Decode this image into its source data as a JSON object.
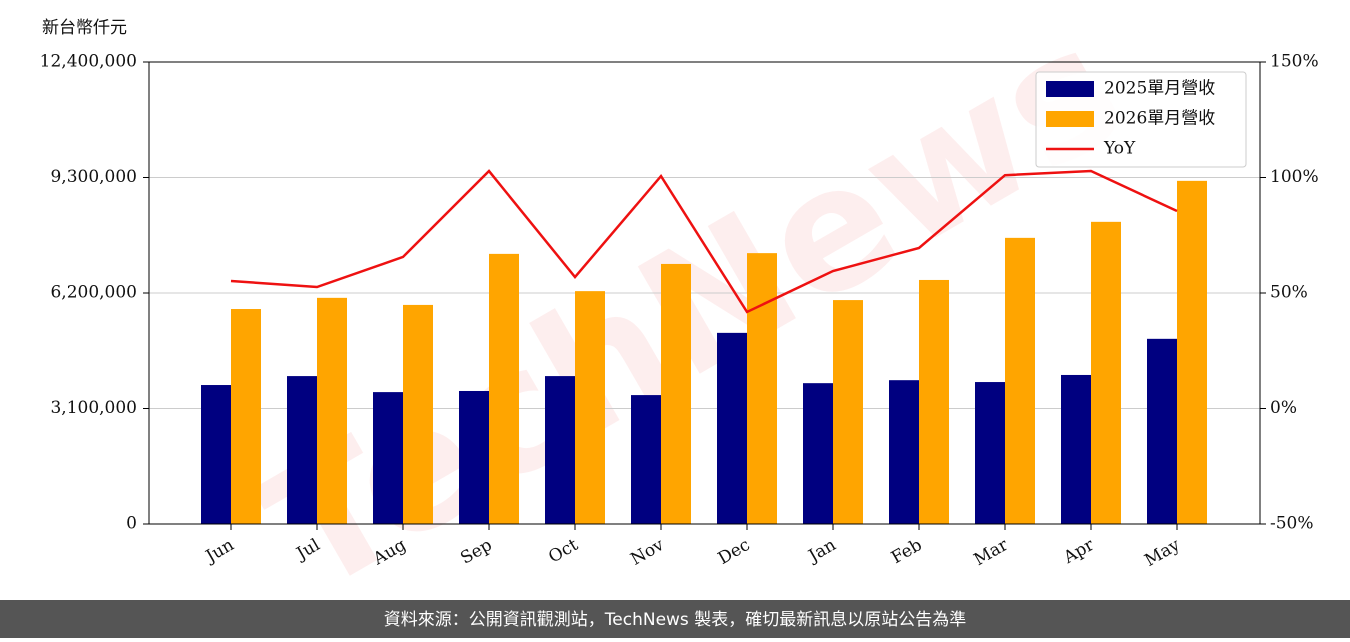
{
  "chart_data": {
    "type": "bar",
    "y_label": "新台幣仟元",
    "watermark": "TechNews",
    "footer": "資料來源：公開資訊觀測站，TechNews 製表，確切最新訊息以原站公告為準",
    "categories": [
      "Jun",
      "Jul",
      "Aug",
      "Sep",
      "Oct",
      "Nov",
      "Dec",
      "Jan",
      "Feb",
      "Mar",
      "Apr",
      "May"
    ],
    "series": [
      {
        "name": "2025單月營收",
        "color": "#000080",
        "type": "bar",
        "values": [
          3730000,
          3970000,
          3540000,
          3570000,
          3970000,
          3460000,
          5130000,
          3780000,
          3860000,
          3810000,
          4000000,
          4970000
        ]
      },
      {
        "name": "2026單月營收",
        "color": "#ffa500",
        "type": "bar",
        "values": [
          5770000,
          6070000,
          5880000,
          7250000,
          6250000,
          6980000,
          7270000,
          6010000,
          6550000,
          7680000,
          8110000,
          9210000
        ]
      },
      {
        "name": "YoY",
        "color": "#ee1111",
        "type": "line",
        "axis": "y2",
        "values": [
          55.2,
          52.6,
          65.6,
          102.8,
          56.9,
          100.6,
          41.8,
          59.5,
          69.5,
          101,
          102.8,
          85.5
        ]
      }
    ],
    "ylim": [
      0,
      12400000
    ],
    "yticks": [
      0,
      {
        "value": 3100000,
        "label": "3,100,000"
      },
      {
        "value": 6200000,
        "label": "6,200,000"
      },
      {
        "value": 9300000,
        "label": "9,300,000"
      },
      {
        "value": 12400000,
        "label": "12,400,000"
      }
    ],
    "y2lim": [
      -50,
      150
    ],
    "y2ticks": [
      {
        "value": -50,
        "label": "-50%"
      },
      {
        "value": 0,
        "label": "0%"
      },
      {
        "value": 50,
        "label": "50%"
      },
      {
        "value": 100,
        "label": "100%"
      },
      {
        "value": 150,
        "label": "150%"
      }
    ],
    "grid": true,
    "legend": "upper right"
  }
}
